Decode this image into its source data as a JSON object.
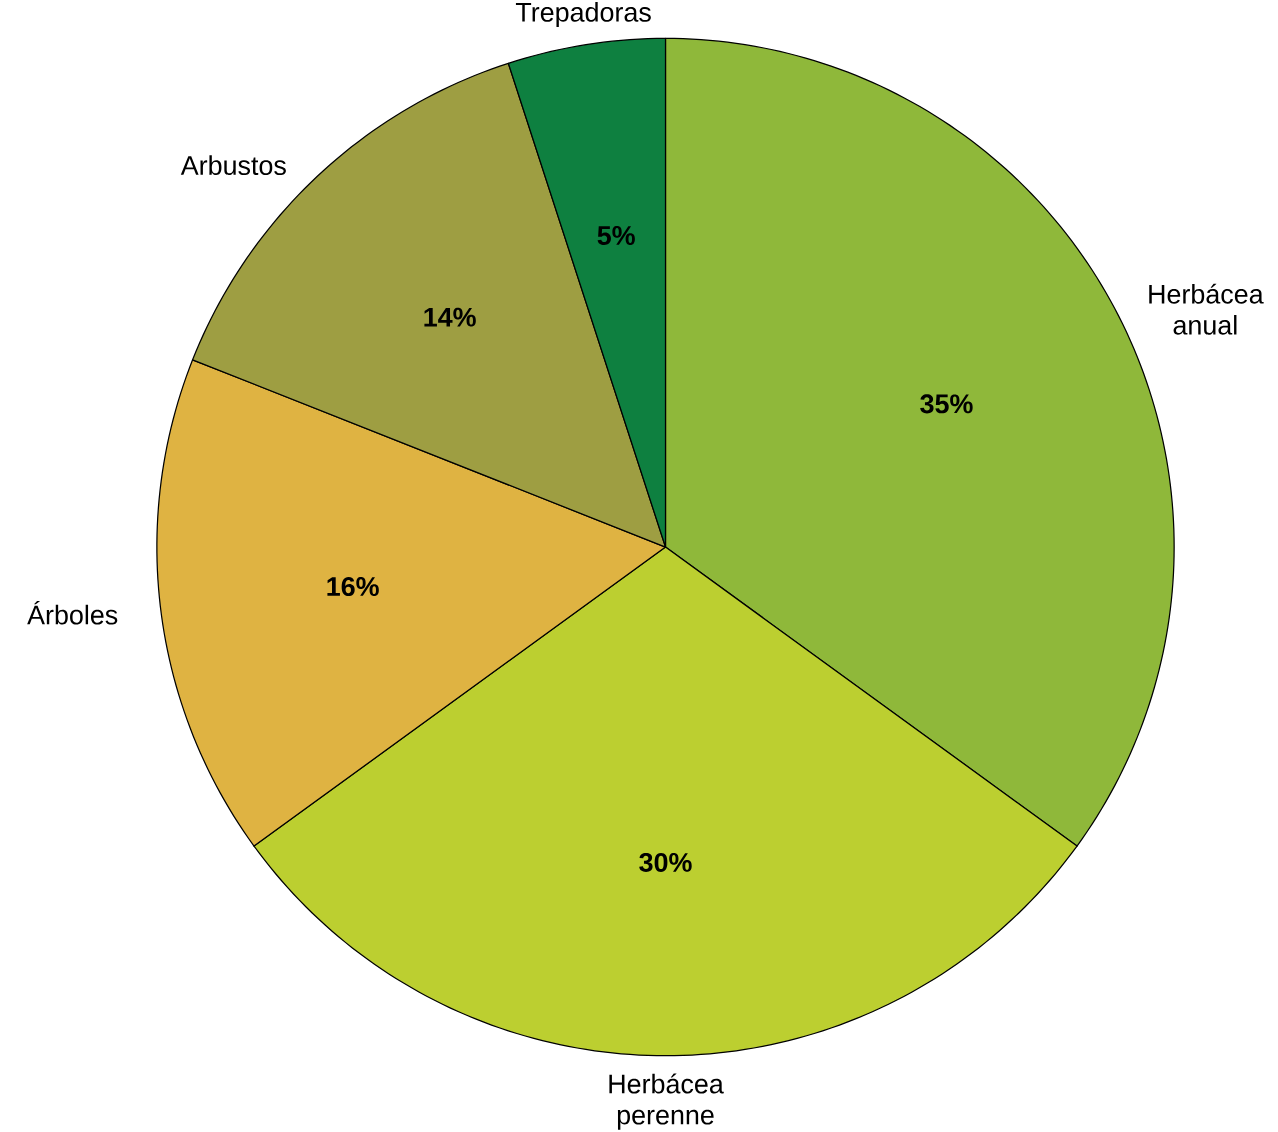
{
  "chart_data": {
    "type": "pie",
    "categories": [
      "Herbácea anual",
      "Herbácea perenne",
      "Árboles",
      "Arbustos",
      "Trepadoras"
    ],
    "values": [
      35,
      30,
      16,
      14,
      5
    ],
    "value_labels": [
      "35%",
      "30%",
      "16%",
      "14%",
      "5%"
    ],
    "colors": [
      "#8fb83a",
      "#bccf30",
      "#dfb342",
      "#9e9e42",
      "#0e8040"
    ]
  }
}
